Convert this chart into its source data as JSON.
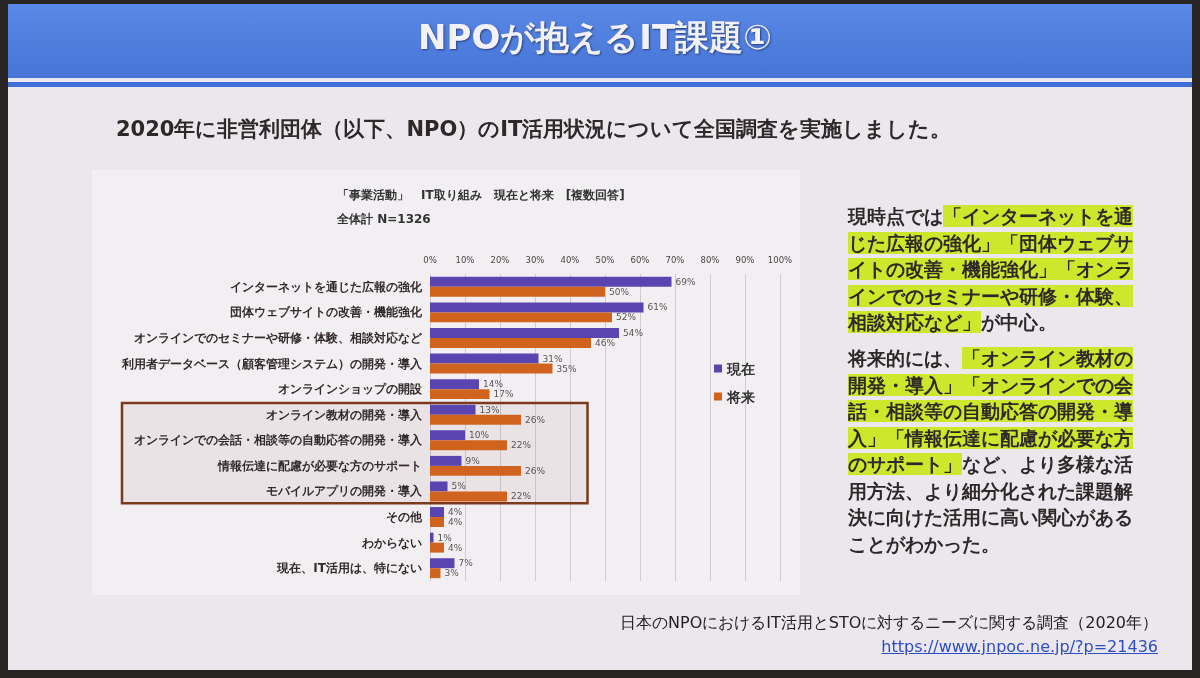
{
  "chart_data": {
    "type": "bar",
    "orientation": "horizontal",
    "title": "「事業活動」　IT取り組み　現在と将来　[複数回答]",
    "subtitle": "全体計 N=1326",
    "categories": [
      "インターネットを通じた広報の強化",
      "団体ウェブサイトの改善・機能強化",
      "オンラインでのセミナーや研修・体験、相談対応など",
      "利用者データベース（顧客管理システム）の開発・導入",
      "オンラインショップの開設",
      "オンライン教材の開発・導入",
      "オンラインでの会話・相談等の自動応答の開発・導入",
      "情報伝達に配慮が必要な方のサポート",
      "モバイルアプリの開発・導入",
      "その他",
      "わからない",
      "現在、IT活用は、特にない"
    ],
    "series": [
      {
        "name": "現在",
        "color": "#5a44b0",
        "values": [
          69,
          61,
          54,
          31,
          14,
          13,
          10,
          9,
          5,
          4,
          1,
          7
        ],
        "value_labels": [
          "69%",
          "61%",
          "54%",
          "31%",
          "14%",
          "13%",
          "10%",
          "9%",
          "5%",
          "4%",
          "1%",
          "7%"
        ]
      },
      {
        "name": "将来",
        "color": "#d0641f",
        "values": [
          50,
          52,
          46,
          35,
          17,
          26,
          22,
          26,
          22,
          4,
          4,
          3
        ],
        "value_labels": [
          "50%",
          "52%",
          "46%",
          "35%",
          "17%",
          "26%",
          "22%",
          "26%",
          "22%",
          "4%",
          "4%",
          "3%"
        ]
      }
    ],
    "xlim": [
      0,
      100
    ],
    "xticks": [
      {
        "value": 0,
        "label": "0%"
      },
      {
        "value": 10,
        "label": "10%"
      },
      {
        "value": 20,
        "label": "20%"
      },
      {
        "value": 30,
        "label": "30%"
      },
      {
        "value": 40,
        "label": "40%"
      },
      {
        "value": 50,
        "label": "50%"
      },
      {
        "value": 60,
        "label": "60%"
      },
      {
        "value": 70,
        "label": "70%"
      },
      {
        "value": 80,
        "label": "80%"
      },
      {
        "value": 90,
        "label": "90%"
      },
      {
        "value": 100,
        "label": "100%"
      }
    ],
    "grid": "x",
    "legend": "right",
    "bands": [
      {
        "axis": "y",
        "from": "オンライン教材の開発・導入",
        "to": "モバイルアプリの開発・導入",
        "color": "#7a3a1c"
      }
    ],
    "annotations": [
      "NPOが抱えるIT課題①",
      "2020年に非営利団体（以下、NPO）のIT活用状況について全国調査を実施しました。",
      "現時点では「インターネットを通じた広報の強化」「団体ウェブサイトの改善・機能強化」「オンラインでのセミナーや研修・体験、相談対応など」が中心。",
      "将来的には、「オンライン教材の開発・導入」「オンラインでの会話・相談等の自動応答の開発・導入」「情報伝達に配慮が必要な方のサポート」など、より多様な活用方法、より細分化された課題解決に向けた活用に高い関心があることがわかった。",
      "日本のNPOにおけるIT活用とSTOに対するニーズに関する調査（2020年）",
      "https://www.jnpoc.ne.jp/?p=21436"
    ]
  }
}
